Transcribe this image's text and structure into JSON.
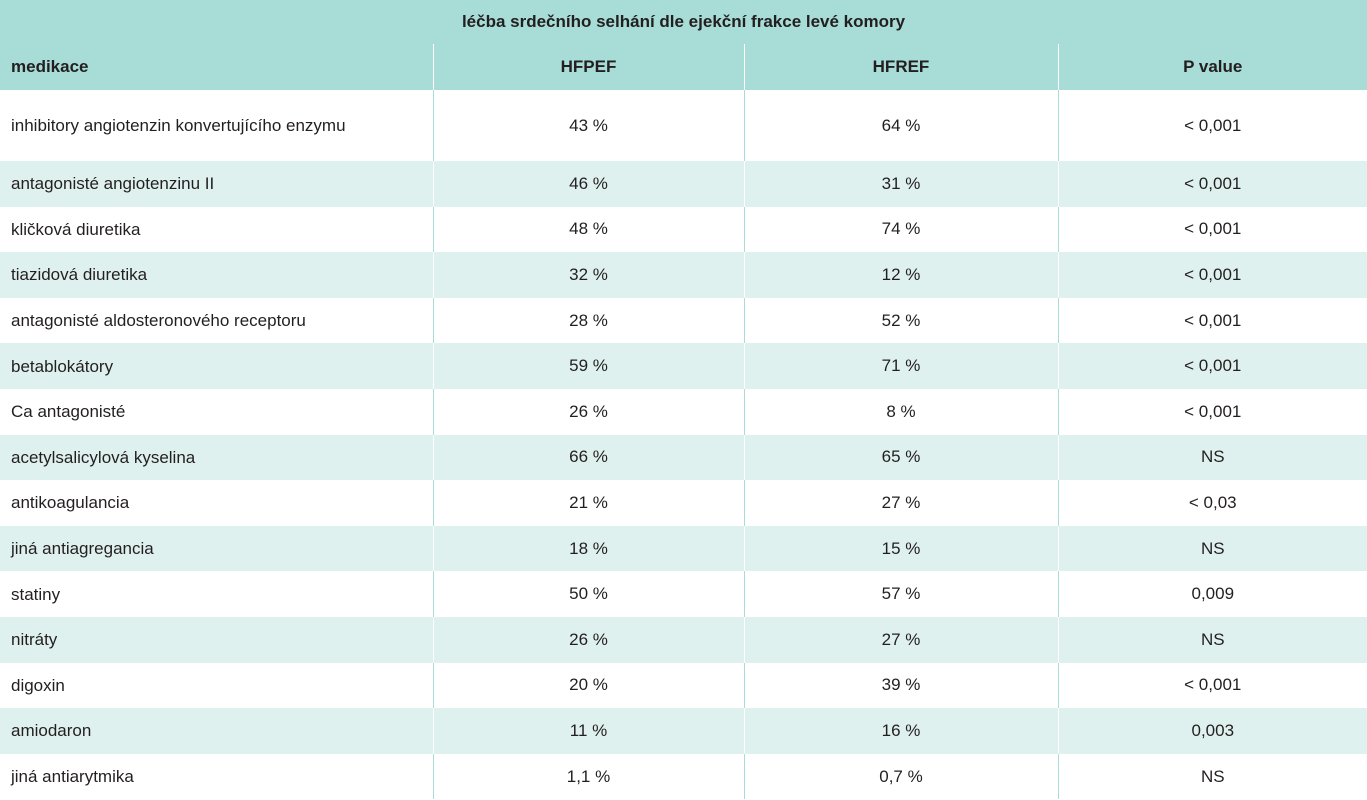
{
  "table": {
    "caption": "léčba srdečního selhání dle ejekční frakce levé komory",
    "columns": [
      "medikace",
      "HFPEF",
      "HFREF",
      "P value"
    ],
    "rows": [
      {
        "medikace": "inhibitory angiotenzin konvertujícího enzymu",
        "hfpef": "43 %",
        "hfref": "64 %",
        "p": "< 0,001"
      },
      {
        "medikace": "antagonisté angiotenzinu II",
        "hfpef": "46 %",
        "hfref": "31 %",
        "p": "< 0,001"
      },
      {
        "medikace": "kličková diuretika",
        "hfpef": "48 %",
        "hfref": "74 %",
        "p": "< 0,001"
      },
      {
        "medikace": "tiazidová diuretika",
        "hfpef": "32 %",
        "hfref": "12 %",
        "p": "< 0,001"
      },
      {
        "medikace": "antagonisté aldosteronového receptoru",
        "hfpef": "28 %",
        "hfref": "52 %",
        "p": "< 0,001"
      },
      {
        "medikace": "betablokátory",
        "hfpef": "59 %",
        "hfref": "71 %",
        "p": "< 0,001"
      },
      {
        "medikace": "Ca antagonisté",
        "hfpef": "26 %",
        "hfref": "8 %",
        "p": "< 0,001"
      },
      {
        "medikace": "acetylsalicylová kyselina",
        "hfpef": "66 %",
        "hfref": "65 %",
        "p": "NS"
      },
      {
        "medikace": "antikoagulancia",
        "hfpef": "21 %",
        "hfref": "27 %",
        "p": "< 0,03"
      },
      {
        "medikace": "jiná antiagregancia",
        "hfpef": "18 %",
        "hfref": "15 %",
        "p": "NS"
      },
      {
        "medikace": "statiny",
        "hfpef": "50 %",
        "hfref": "57 %",
        "p": "0,009"
      },
      {
        "medikace": "nitráty",
        "hfpef": "26 %",
        "hfref": "27 %",
        "p": "NS"
      },
      {
        "medikace": "digoxin",
        "hfpef": "20 %",
        "hfref": "39 %",
        "p": "< 0,001"
      },
      {
        "medikace": "amiodaron",
        "hfpef": "11 %",
        "hfref": "16 %",
        "p": "0,003"
      },
      {
        "medikace": "jiná antiarytmika",
        "hfpef": "1,1 %",
        "hfref": "0,7 %",
        "p": "NS"
      }
    ]
  },
  "colors": {
    "header_bg": "#a8dcd6",
    "stripe_bg": "#dff1ee",
    "text": "#231f20"
  }
}
